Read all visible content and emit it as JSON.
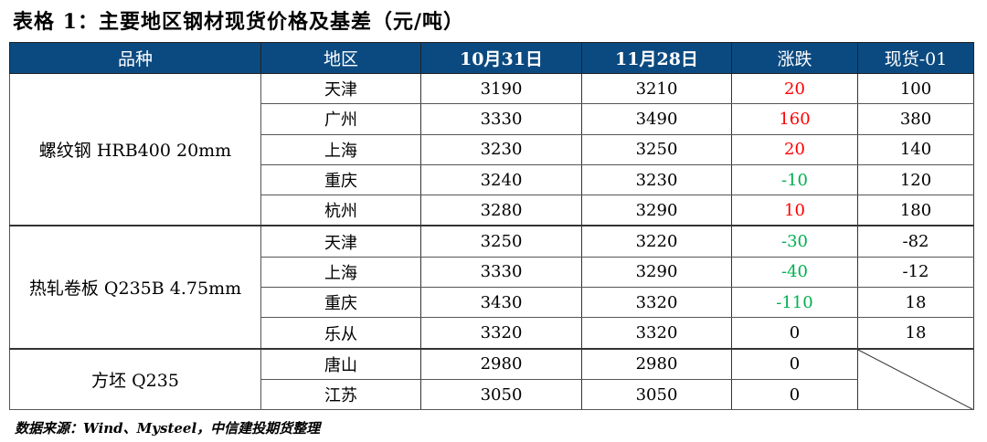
{
  "title": "表格 1：主要地区钢材现货价格及基差（元/吨）",
  "headers": [
    "品种",
    "地区",
    "10月31日",
    "11月28日",
    "涨跌",
    "现货-01"
  ],
  "groups": [
    {
      "product": "螺纹钢 HRB400 20mm",
      "rows": [
        {
          "region": "天津",
          "oct31": "3190",
          "nov28": "3210",
          "change": "20",
          "basis": "100",
          "trend": "up"
        },
        {
          "region": "广州",
          "oct31": "3330",
          "nov28": "3490",
          "change": "160",
          "basis": "380",
          "trend": "up"
        },
        {
          "region": "上海",
          "oct31": "3230",
          "nov28": "3250",
          "change": "20",
          "basis": "140",
          "trend": "up"
        },
        {
          "region": "重庆",
          "oct31": "3240",
          "nov28": "3230",
          "change": "-10",
          "basis": "120",
          "trend": "down"
        },
        {
          "region": "杭州",
          "oct31": "3280",
          "nov28": "3290",
          "change": "10",
          "basis": "180",
          "trend": "up"
        }
      ]
    },
    {
      "product": "热轧卷板 Q235B 4.75mm",
      "rows": [
        {
          "region": "天津",
          "oct31": "3250",
          "nov28": "3220",
          "change": "-30",
          "basis": "-82",
          "trend": "down"
        },
        {
          "region": "上海",
          "oct31": "3330",
          "nov28": "3290",
          "change": "-40",
          "basis": "-12",
          "trend": "down"
        },
        {
          "region": "重庆",
          "oct31": "3430",
          "nov28": "3320",
          "change": "-110",
          "basis": "18",
          "trend": "down"
        },
        {
          "region": "乐从",
          "oct31": "3320",
          "nov28": "3320",
          "change": "0",
          "basis": "18",
          "trend": "flat"
        }
      ]
    },
    {
      "product": "方坯 Q235",
      "rows": [
        {
          "region": "唐山",
          "oct31": "2980",
          "nov28": "2980",
          "change": "0",
          "trend": "flat"
        },
        {
          "region": "江苏",
          "oct31": "3050",
          "nov28": "3050",
          "change": "0",
          "trend": "flat"
        }
      ]
    }
  ],
  "colors": {
    "header_bg": "#0b4a80",
    "up": "#ff0000",
    "down": "#00b050"
  },
  "source": "数据来源：Wind、Mysteel，中信建投期货整理"
}
